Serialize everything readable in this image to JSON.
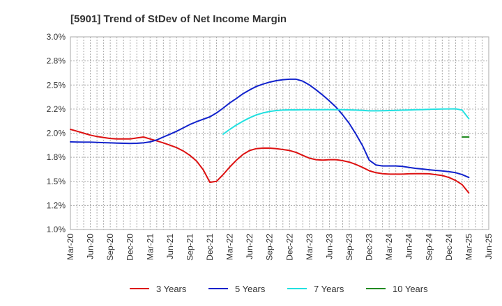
{
  "chart_data": {
    "type": "line",
    "title": "[5901]  Trend of StDev of Net Income Margin",
    "xlabel": "",
    "ylabel": "",
    "ylim": [
      1.0,
      3.0
    ],
    "y_ticks": [
      "1.0%",
      "1.2%",
      "1.5%",
      "1.8%",
      "2.0%",
      "2.2%",
      "2.5%",
      "2.8%",
      "3.0%"
    ],
    "x_ticks": [
      "Mar-20",
      "Jun-20",
      "Sep-20",
      "Dec-20",
      "Mar-21",
      "Jun-21",
      "Sep-21",
      "Dec-21",
      "Mar-22",
      "Jun-22",
      "Sep-22",
      "Dec-22",
      "Mar-23",
      "Jun-23",
      "Sep-23",
      "Dec-23",
      "Mar-24",
      "Jun-24",
      "Sep-24",
      "Dec-24",
      "Mar-25",
      "Jun-25"
    ],
    "grid": true,
    "legend_position": "bottom",
    "series": [
      {
        "name": "3 Years",
        "color": "#dd1111",
        "x": [
          "Mar-20",
          "Apr-20",
          "May-20",
          "Jun-20",
          "Jul-20",
          "Aug-20",
          "Sep-20",
          "Oct-20",
          "Nov-20",
          "Dec-20",
          "Jan-21",
          "Feb-21",
          "Mar-21",
          "Apr-21",
          "May-21",
          "Jun-21",
          "Jul-21",
          "Aug-21",
          "Sep-21",
          "Oct-21",
          "Nov-21",
          "Dec-21",
          "Jan-22",
          "Feb-22",
          "Mar-22",
          "Apr-22",
          "May-22",
          "Jun-22",
          "Jul-22",
          "Aug-22",
          "Sep-22",
          "Oct-22",
          "Nov-22",
          "Dec-22",
          "Jan-23",
          "Feb-23",
          "Mar-23",
          "Apr-23",
          "May-23",
          "Jun-23",
          "Jul-23",
          "Aug-23",
          "Sep-23",
          "Oct-23",
          "Nov-23",
          "Dec-23",
          "Jan-24",
          "Feb-24",
          "Mar-24",
          "Apr-24",
          "May-24",
          "Jun-24",
          "Jul-24",
          "Aug-24",
          "Sep-24",
          "Oct-24",
          "Nov-24",
          "Dec-24",
          "Jan-25",
          "Feb-25",
          "Mar-25"
        ],
        "y": [
          2.04,
          2.02,
          2.0,
          1.98,
          1.965,
          1.955,
          1.945,
          1.94,
          1.94,
          1.94,
          1.95,
          1.96,
          1.94,
          1.92,
          1.9,
          1.875,
          1.85,
          1.815,
          1.77,
          1.71,
          1.62,
          1.49,
          1.5,
          1.57,
          1.65,
          1.72,
          1.78,
          1.82,
          1.84,
          1.845,
          1.845,
          1.84,
          1.83,
          1.82,
          1.8,
          1.77,
          1.74,
          1.725,
          1.72,
          1.725,
          1.725,
          1.715,
          1.7,
          1.675,
          1.645,
          1.61,
          1.59,
          1.58,
          1.575,
          1.575,
          1.575,
          1.578,
          1.58,
          1.58,
          1.578,
          1.57,
          1.56,
          1.54,
          1.51,
          1.465,
          1.38
        ]
      },
      {
        "name": "5 Years",
        "color": "#1122cc",
        "x": [
          "Mar-20",
          "Apr-20",
          "May-20",
          "Jun-20",
          "Jul-20",
          "Aug-20",
          "Sep-20",
          "Oct-20",
          "Nov-20",
          "Dec-20",
          "Jan-21",
          "Feb-21",
          "Mar-21",
          "Apr-21",
          "May-21",
          "Jun-21",
          "Jul-21",
          "Aug-21",
          "Sep-21",
          "Oct-21",
          "Nov-21",
          "Dec-21",
          "Jan-22",
          "Feb-22",
          "Mar-22",
          "Apr-22",
          "May-22",
          "Jun-22",
          "Jul-22",
          "Aug-22",
          "Sep-22",
          "Oct-22",
          "Nov-22",
          "Dec-22",
          "Jan-23",
          "Feb-23",
          "Mar-23",
          "Apr-23",
          "May-23",
          "Jun-23",
          "Jul-23",
          "Aug-23",
          "Sep-23",
          "Oct-23",
          "Nov-23",
          "Dec-23",
          "Jan-24",
          "Feb-24",
          "Mar-24",
          "Apr-24",
          "May-24",
          "Jun-24",
          "Jul-24",
          "Aug-24",
          "Sep-24",
          "Oct-24",
          "Nov-24",
          "Dec-24",
          "Jan-25",
          "Feb-25",
          "Mar-25"
        ],
        "y": [
          1.91,
          1.908,
          1.907,
          1.907,
          1.905,
          1.902,
          1.9,
          1.897,
          1.895,
          1.894,
          1.895,
          1.9,
          1.91,
          1.93,
          1.96,
          1.99,
          2.02,
          2.055,
          2.09,
          2.12,
          2.145,
          2.17,
          2.21,
          2.26,
          2.315,
          2.36,
          2.41,
          2.45,
          2.485,
          2.51,
          2.53,
          2.545,
          2.555,
          2.56,
          2.56,
          2.54,
          2.5,
          2.45,
          2.395,
          2.335,
          2.27,
          2.19,
          2.1,
          1.99,
          1.87,
          1.72,
          1.67,
          1.66,
          1.66,
          1.66,
          1.655,
          1.645,
          1.635,
          1.628,
          1.62,
          1.614,
          1.608,
          1.6,
          1.59,
          1.57,
          1.54
        ]
      },
      {
        "name": "7 Years",
        "color": "#22e0e0",
        "x": [
          "Feb-22",
          "Mar-22",
          "Apr-22",
          "May-22",
          "Jun-22",
          "Jul-22",
          "Aug-22",
          "Sep-22",
          "Oct-22",
          "Nov-22",
          "Dec-22",
          "Jan-23",
          "Feb-23",
          "Mar-23",
          "Apr-23",
          "May-23",
          "Jun-23",
          "Jul-23",
          "Aug-23",
          "Sep-23",
          "Oct-23",
          "Nov-23",
          "Dec-23",
          "Jan-24",
          "Feb-24",
          "Mar-24",
          "Apr-24",
          "May-24",
          "Jun-24",
          "Jul-24",
          "Aug-24",
          "Sep-24",
          "Oct-24",
          "Nov-24",
          "Dec-24",
          "Jan-25",
          "Feb-25",
          "Mar-25"
        ],
        "y": [
          1.99,
          2.04,
          2.085,
          2.125,
          2.16,
          2.19,
          2.21,
          2.225,
          2.235,
          2.24,
          2.242,
          2.242,
          2.243,
          2.244,
          2.244,
          2.244,
          2.245,
          2.244,
          2.243,
          2.242,
          2.24,
          2.236,
          2.232,
          2.232,
          2.233,
          2.235,
          2.237,
          2.239,
          2.241,
          2.243,
          2.245,
          2.247,
          2.249,
          2.251,
          2.252,
          2.253,
          2.24,
          2.15
        ]
      },
      {
        "name": "10 Years",
        "color": "#228b22",
        "x": [
          "Feb-25",
          "Mar-25"
        ],
        "y": [
          1.96,
          1.96
        ]
      }
    ]
  }
}
